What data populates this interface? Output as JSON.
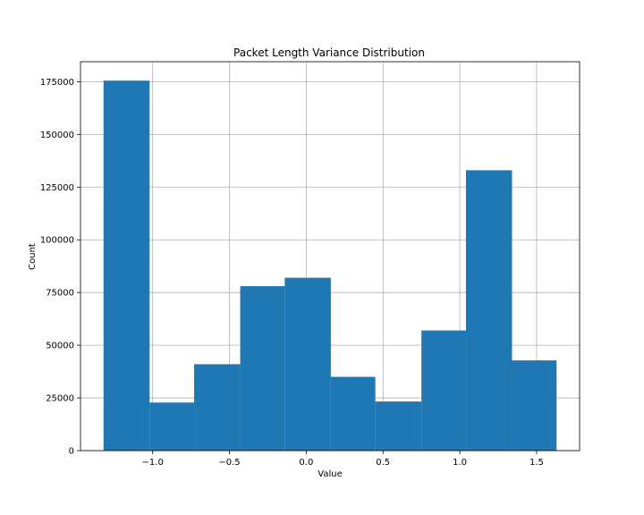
{
  "chart_data": {
    "type": "bar",
    "title": "Packet Length Variance Distribution",
    "xlabel": "Value",
    "ylabel": "Count",
    "bin_edges": [
      -1.32,
      -1.02,
      -0.73,
      -0.43,
      -0.14,
      0.16,
      0.45,
      0.75,
      1.04,
      1.34,
      1.63
    ],
    "values": [
      175500,
      22800,
      41000,
      78000,
      82000,
      35000,
      23300,
      57000,
      133000,
      42800
    ],
    "xlim": [
      -1.47,
      1.78
    ],
    "ylim": [
      0,
      184500
    ],
    "xticks": [
      -1.0,
      -0.5,
      0.0,
      0.5,
      1.0,
      1.5
    ],
    "xtick_labels": [
      "−1.0",
      "−0.5",
      "0.0",
      "0.5",
      "1.0",
      "1.5"
    ],
    "yticks": [
      0,
      25000,
      50000,
      75000,
      100000,
      125000,
      150000,
      175000
    ],
    "ytick_labels": [
      "0",
      "25000",
      "50000",
      "75000",
      "100000",
      "125000",
      "150000",
      "175000"
    ],
    "grid": true,
    "bar_color": "#1f77b4"
  }
}
